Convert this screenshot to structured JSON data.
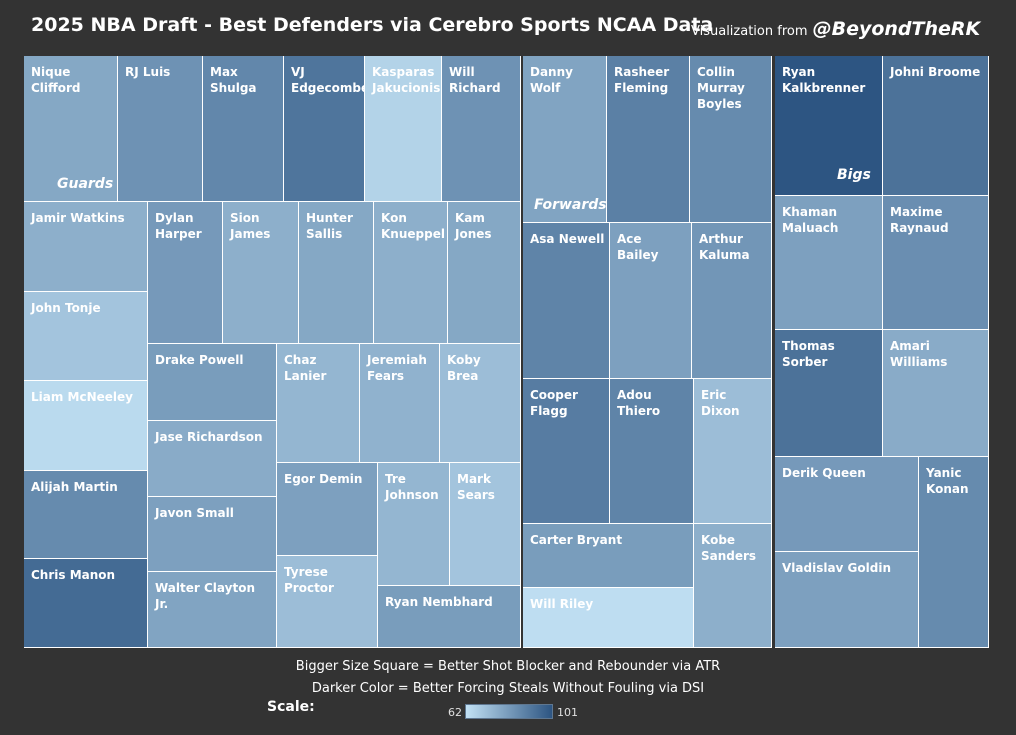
{
  "header": {
    "title": "2025 NBA Draft - Best Defenders via Cerebro Sports NCAA Data",
    "credit_prefix": "Visualization from",
    "credit_handle": "@BeyondTheRK"
  },
  "notes": {
    "size": "Bigger Size Square = Better Shot Blocker and Rebounder via ATR",
    "color": "Darker Color = Better Forcing Steals Without Fouling via DSI"
  },
  "legend": {
    "label": "Scale:",
    "min_label": "62",
    "max_label": "101",
    "min": 62,
    "max": 101,
    "color_low": "#c2e1f4",
    "color_high": "#2d5582"
  },
  "chart_data": {
    "type": "treemap",
    "size_measure": "ATR",
    "color_measure": "DSI",
    "groups": [
      {
        "name": "Guards",
        "players": [
          {
            "name": "Nique Clifford",
            "atr": 22.6,
            "dsi": 78
          },
          {
            "name": "RJ Luis",
            "atr": 17.8,
            "dsi": 84
          },
          {
            "name": "Max Shulga",
            "atr": 17.8,
            "dsi": 87
          },
          {
            "name": "VJ Edgecombe",
            "atr": 18.5,
            "dsi": 92
          },
          {
            "name": "Kasparas Jakucionis",
            "atr": 17.3,
            "dsi": 66
          },
          {
            "name": "Will Richard",
            "atr": 17.4,
            "dsi": 84
          },
          {
            "name": "Jamir Watkins",
            "atr": 15.0,
            "dsi": 76
          },
          {
            "name": "John Tonje",
            "atr": 15.0,
            "dsi": 70
          },
          {
            "name": "Liam McNeeley",
            "atr": 15.0,
            "dsi": 64
          },
          {
            "name": "Alijah Martin",
            "atr": 14.6,
            "dsi": 86
          },
          {
            "name": "Chris Manon",
            "atr": 14.8,
            "dsi": 95
          },
          {
            "name": "Dylan Harper",
            "atr": 11.2,
            "dsi": 82
          },
          {
            "name": "Sion James",
            "atr": 11.2,
            "dsi": 76
          },
          {
            "name": "Hunter Sallis",
            "atr": 11.2,
            "dsi": 78
          },
          {
            "name": "Kon Knueppel",
            "atr": 11.2,
            "dsi": 76
          },
          {
            "name": "Kam Jones",
            "atr": 11.2,
            "dsi": 78
          },
          {
            "name": "Drake Powell",
            "atr": 9.9,
            "dsi": 81
          },
          {
            "name": "Jase Richardson",
            "atr": 9.9,
            "dsi": 77
          },
          {
            "name": "Javon Small",
            "atr": 9.9,
            "dsi": 80
          },
          {
            "name": "Walter Clayton Jr.",
            "atr": 9.9,
            "dsi": 79
          },
          {
            "name": "Chaz Lanier",
            "atr": 8.4,
            "dsi": 74
          },
          {
            "name": "Jeremiah Fears",
            "atr": 8.4,
            "dsi": 75
          },
          {
            "name": "Koby Brea",
            "atr": 8.4,
            "dsi": 72
          },
          {
            "name": "Egor Demin",
            "atr": 8.0,
            "dsi": 80
          },
          {
            "name": "Tyrese Proctor",
            "atr": 6.8,
            "dsi": 72
          },
          {
            "name": "Tre Johnson",
            "atr": 6.7,
            "dsi": 74
          },
          {
            "name": "Mark Sears",
            "atr": 5.7,
            "dsi": 70
          },
          {
            "name": "Ryan Nembhard",
            "atr": 5.8,
            "dsi": 81
          }
        ]
      },
      {
        "name": "Forwards",
        "players": [
          {
            "name": "Danny Wolf",
            "atr": 20.0,
            "dsi": 79
          },
          {
            "name": "Rasheer Fleming",
            "atr": 20.0,
            "dsi": 89
          },
          {
            "name": "Collin Murray Boyles",
            "atr": 20.0,
            "dsi": 86
          },
          {
            "name": "Asa Newell",
            "atr": 17.0,
            "dsi": 88
          },
          {
            "name": "Ace Bailey",
            "atr": 17.0,
            "dsi": 80
          },
          {
            "name": "Arthur Kaluma",
            "atr": 17.0,
            "dsi": 83
          },
          {
            "name": "Cooper Flagg",
            "atr": 16.0,
            "dsi": 90
          },
          {
            "name": "Adou Thiero",
            "atr": 16.0,
            "dsi": 88
          },
          {
            "name": "Eric Dixon",
            "atr": 16.0,
            "dsi": 72
          },
          {
            "name": "Carter Bryant",
            "atr": 10.9,
            "dsi": 81
          },
          {
            "name": "Will Riley",
            "atr": 10.9,
            "dsi": 63
          },
          {
            "name": "Kobe Sanders",
            "atr": 10.9,
            "dsi": 76
          }
        ]
      },
      {
        "name": "Bigs",
        "players": [
          {
            "name": "Ryan Kalkbrenner",
            "atr": 22.0,
            "dsi": 101
          },
          {
            "name": "Johni Broome",
            "atr": 22.0,
            "dsi": 93
          },
          {
            "name": "Khaman Maluach",
            "atr": 21.0,
            "dsi": 80
          },
          {
            "name": "Maxime Raynaud",
            "atr": 21.0,
            "dsi": 85
          },
          {
            "name": "Thomas Sorber",
            "atr": 20.0,
            "dsi": 93
          },
          {
            "name": "Amari Williams",
            "atr": 20.0,
            "dsi": 77
          },
          {
            "name": "Derik Queen",
            "atr": 14.0,
            "dsi": 82
          },
          {
            "name": "Vladislav Goldin",
            "atr": 14.0,
            "dsi": 80
          },
          {
            "name": "Yanic Konan",
            "atr": 21.0,
            "dsi": 86
          }
        ]
      }
    ]
  }
}
